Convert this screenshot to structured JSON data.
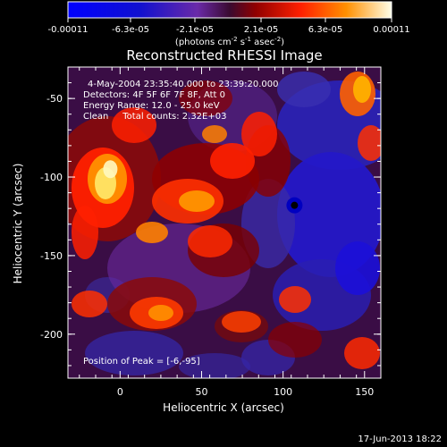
{
  "chart_data": {
    "type": "heatmap",
    "title": "Reconstructed RHESSI Image",
    "xlabel": "Heliocentric X (arcsec)",
    "ylabel": "Heliocentric Y (arcsec)",
    "xlim": [
      -32,
      160
    ],
    "ylim": [
      -228,
      -30
    ],
    "xticks": [
      0,
      50,
      100,
      150
    ],
    "yticks": [
      -50,
      -100,
      -150,
      -200
    ],
    "colorbar": {
      "ticks": [
        "-0.00011",
        "-6.3e-05",
        "-2.1e-05",
        "2.1e-05",
        "6.3e-05",
        "0.00011"
      ],
      "min": -0.00011,
      "max": 0.00011,
      "units_main": "(photons cm",
      "units_exp1": "-2",
      "units_mid": " s",
      "units_exp2": "-1",
      "units_end": " asec",
      "units_exp3": "-2",
      "units_close": ")"
    },
    "annotations": [
      "4-May-2004 23:35:40.000 to 23:39:20.000",
      "Detectors: 4F 5F 6F 7F 8F, Att 0",
      "Energy Range: 12.0 - 25.0 keV",
      "Clean     Total counts: 2.32E+03"
    ],
    "peak_label": "Position of Peak = [-6,-95]",
    "peak": [
      -6,
      -95
    ],
    "min_spot": [
      107,
      -118
    ],
    "footer_date": "17-Jun-2013 18:22"
  }
}
